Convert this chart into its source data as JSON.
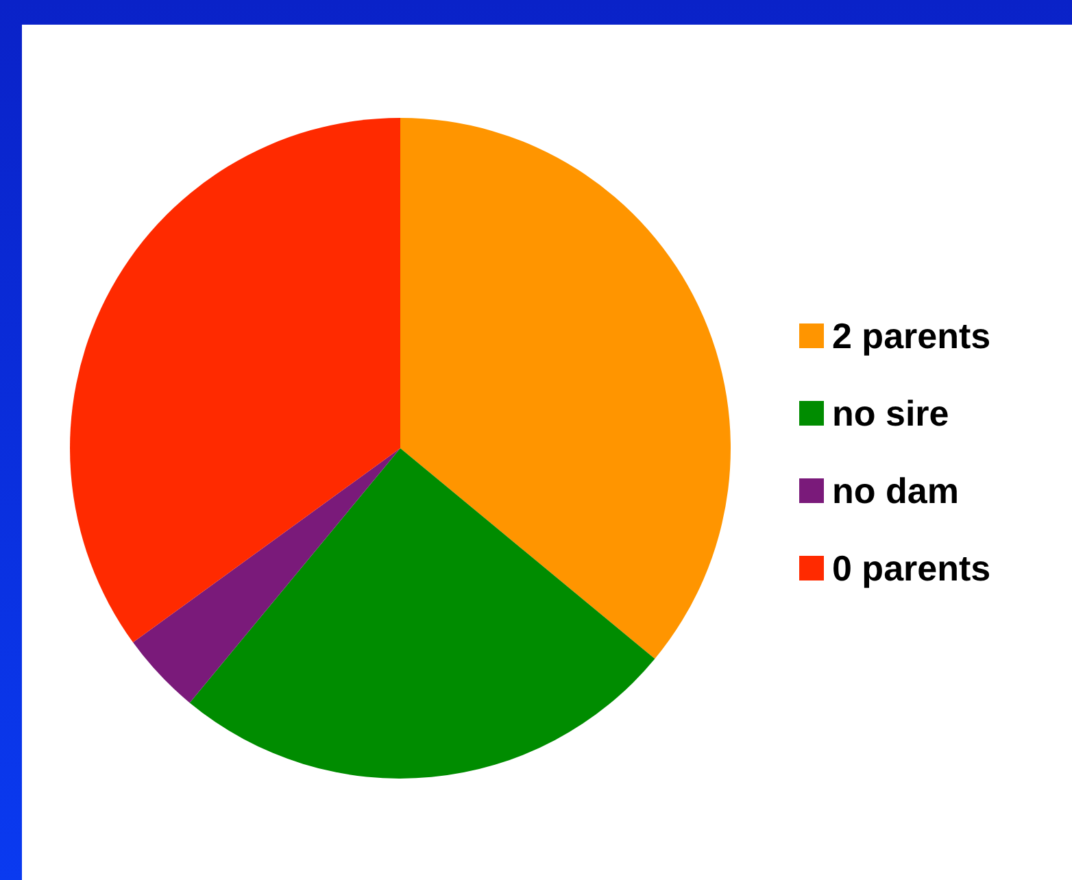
{
  "chart_data": {
    "type": "pie",
    "categories": [
      "2 parents",
      "no sire",
      "no dam",
      "0 parents"
    ],
    "values": [
      36,
      25,
      4,
      35
    ],
    "colors": [
      "#ff9500",
      "#008c00",
      "#7a1a7a",
      "#ff2a00"
    ],
    "legend": "right"
  }
}
